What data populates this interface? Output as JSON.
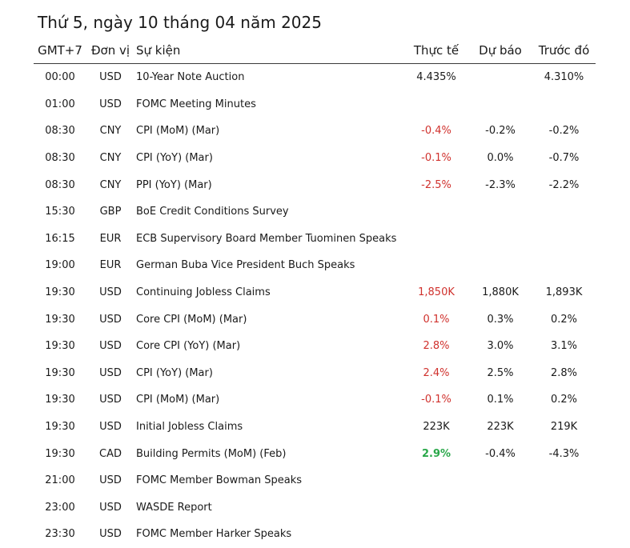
{
  "title": "Thứ 5, ngày 10 tháng 04 năm 2025",
  "headers": {
    "time": "GMT+7",
    "currency": "Đơn vị",
    "event": "Sự kiện",
    "actual": "Thực tế",
    "forecast": "Dự báo",
    "previous": "Trước đó"
  },
  "colors": {
    "negative": "#d0312d",
    "positive": "#2aa84a",
    "neutral": "#1a1a1a"
  },
  "rows": [
    {
      "time": "00:00",
      "currency": "USD",
      "event": "10-Year Note Auction",
      "actual": "4.435%",
      "actual_tone": "neutral",
      "forecast": "",
      "previous": "4.310%"
    },
    {
      "time": "01:00",
      "currency": "USD",
      "event": "FOMC Meeting Minutes",
      "actual": "",
      "actual_tone": "neutral",
      "forecast": "",
      "previous": ""
    },
    {
      "time": "08:30",
      "currency": "CNY",
      "event": "CPI (MoM) (Mar)",
      "actual": "-0.4%",
      "actual_tone": "negative",
      "forecast": "-0.2%",
      "previous": "-0.2%"
    },
    {
      "time": "08:30",
      "currency": "CNY",
      "event": "CPI (YoY) (Mar)",
      "actual": "-0.1%",
      "actual_tone": "negative",
      "forecast": "0.0%",
      "previous": "-0.7%"
    },
    {
      "time": "08:30",
      "currency": "CNY",
      "event": "PPI (YoY) (Mar)",
      "actual": "-2.5%",
      "actual_tone": "negative",
      "forecast": "-2.3%",
      "previous": "-2.2%"
    },
    {
      "time": "15:30",
      "currency": "GBP",
      "event": "BoE Credit Conditions Survey",
      "actual": "",
      "actual_tone": "neutral",
      "forecast": "",
      "previous": ""
    },
    {
      "time": "16:15",
      "currency": "EUR",
      "event": "ECB Supervisory Board Member Tuominen Speaks",
      "actual": "",
      "actual_tone": "neutral",
      "forecast": "",
      "previous": ""
    },
    {
      "time": "19:00",
      "currency": "EUR",
      "event": "German Buba Vice President Buch Speaks",
      "actual": "",
      "actual_tone": "neutral",
      "forecast": "",
      "previous": ""
    },
    {
      "time": "19:30",
      "currency": "USD",
      "event": "Continuing Jobless Claims",
      "actual": "1,850K",
      "actual_tone": "negative",
      "forecast": "1,880K",
      "previous": "1,893K"
    },
    {
      "time": "19:30",
      "currency": "USD",
      "event": "Core CPI (MoM) (Mar)",
      "actual": "0.1%",
      "actual_tone": "negative",
      "forecast": "0.3%",
      "previous": "0.2%"
    },
    {
      "time": "19:30",
      "currency": "USD",
      "event": "Core CPI (YoY) (Mar)",
      "actual": "2.8%",
      "actual_tone": "negative",
      "forecast": "3.0%",
      "previous": "3.1%"
    },
    {
      "time": "19:30",
      "currency": "USD",
      "event": "CPI (YoY) (Mar)",
      "actual": "2.4%",
      "actual_tone": "negative",
      "forecast": "2.5%",
      "previous": "2.8%"
    },
    {
      "time": "19:30",
      "currency": "USD",
      "event": "CPI (MoM) (Mar)",
      "actual": "-0.1%",
      "actual_tone": "negative",
      "forecast": "0.1%",
      "previous": "0.2%"
    },
    {
      "time": "19:30",
      "currency": "USD",
      "event": "Initial Jobless Claims",
      "actual": "223K",
      "actual_tone": "neutral",
      "forecast": "223K",
      "previous": "219K"
    },
    {
      "time": "19:30",
      "currency": "CAD",
      "event": "Building Permits (MoM) (Feb)",
      "actual": "2.9%",
      "actual_tone": "positive",
      "forecast": "-0.4%",
      "previous": "-4.3%"
    },
    {
      "time": "21:00",
      "currency": "USD",
      "event": "FOMC Member Bowman Speaks",
      "actual": "",
      "actual_tone": "neutral",
      "forecast": "",
      "previous": ""
    },
    {
      "time": "23:00",
      "currency": "USD",
      "event": "WASDE Report",
      "actual": "",
      "actual_tone": "neutral",
      "forecast": "",
      "previous": ""
    },
    {
      "time": "23:30",
      "currency": "USD",
      "event": "FOMC Member Harker Speaks",
      "actual": "",
      "actual_tone": "neutral",
      "forecast": "",
      "previous": ""
    }
  ]
}
